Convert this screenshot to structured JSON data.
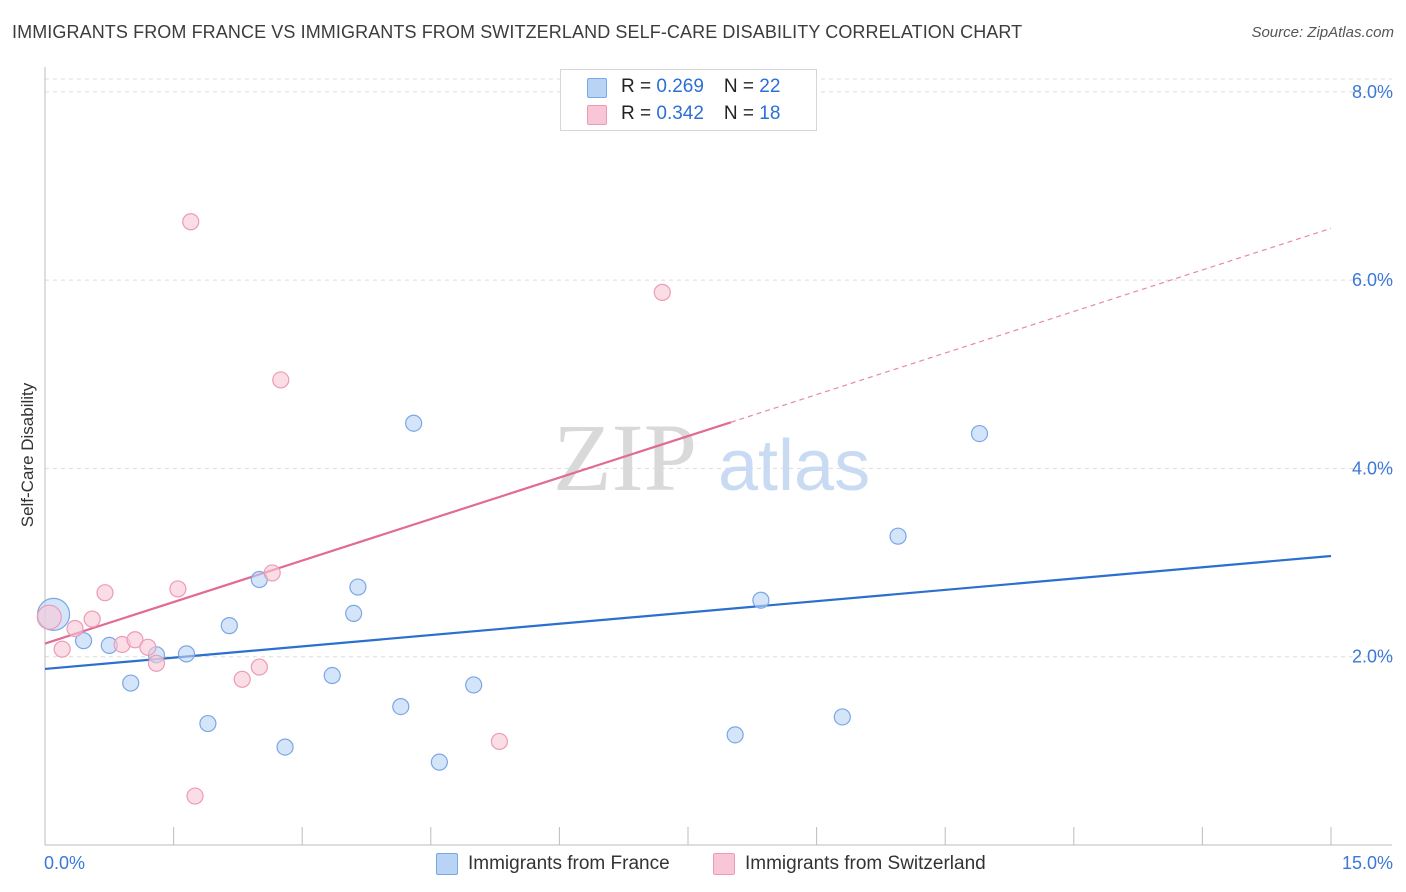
{
  "title": "IMMIGRANTS FROM FRANCE VS IMMIGRANTS FROM SWITZERLAND SELF-CARE DISABILITY CORRELATION CHART",
  "source": "Source: ZipAtlas.com",
  "watermark": {
    "zip": "ZIP",
    "atlas": "atlas"
  },
  "legend": {
    "france": {
      "r_label": "R = ",
      "r_value": "0.269",
      "n_label": "N = ",
      "n_value": "22"
    },
    "switzerland": {
      "r_label": "R = ",
      "r_value": "0.342",
      "n_label": "N = ",
      "n_value": "18"
    }
  },
  "colors": {
    "france_fill": "#b9d3f5",
    "france_stroke": "#7aa7e6",
    "france_line": "#2b6fcf",
    "switzerland_fill": "#f8c6d6",
    "switzerland_stroke": "#ec9bb6",
    "switzerland_line": "#e26b93",
    "grid": "#dcdcdc",
    "axis_text": "#3b78d8"
  },
  "chart_data": {
    "type": "scatter",
    "title": "IMMIGRANTS FROM FRANCE VS IMMIGRANTS FROM SWITZERLAND SELF-CARE DISABILITY CORRELATION CHART",
    "xlabel": "",
    "ylabel": "Self-Care Disability",
    "xlim": [
      0,
      15
    ],
    "ylim": [
      0,
      8.2
    ],
    "x_tick_labels": [
      "0.0%",
      "15.0%"
    ],
    "y_ticks": [
      2,
      4,
      6,
      8
    ],
    "y_tick_labels": [
      "2.0%",
      "4.0%",
      "6.0%",
      "8.0%"
    ],
    "grid": true,
    "legend_position": "top-center",
    "series": [
      {
        "name": "Immigrants from France",
        "points": [
          [
            0.1,
            2.45
          ],
          [
            0.45,
            2.17
          ],
          [
            0.75,
            2.12
          ],
          [
            1.0,
            1.72
          ],
          [
            1.3,
            2.02
          ],
          [
            1.65,
            2.03
          ],
          [
            1.9,
            1.29
          ],
          [
            2.15,
            2.33
          ],
          [
            2.5,
            2.82
          ],
          [
            2.8,
            1.04
          ],
          [
            3.35,
            1.8
          ],
          [
            3.6,
            2.46
          ],
          [
            3.65,
            2.74
          ],
          [
            4.15,
            1.47
          ],
          [
            4.3,
            4.48
          ],
          [
            4.6,
            0.88
          ],
          [
            5.0,
            1.7
          ],
          [
            8.05,
            1.17
          ],
          [
            8.35,
            2.6
          ],
          [
            9.3,
            1.36
          ],
          [
            9.95,
            3.28
          ],
          [
            10.9,
            4.37
          ]
        ],
        "trend": {
          "x": [
            0,
            15
          ],
          "y": [
            1.87,
            3.07
          ]
        }
      },
      {
        "name": "Immigrants from Switzerland",
        "points": [
          [
            0.05,
            2.42
          ],
          [
            0.2,
            2.08
          ],
          [
            0.35,
            2.3
          ],
          [
            0.55,
            2.4
          ],
          [
            0.7,
            2.68
          ],
          [
            0.9,
            2.13
          ],
          [
            1.05,
            2.18
          ],
          [
            1.2,
            2.1
          ],
          [
            1.3,
            1.93
          ],
          [
            1.55,
            2.72
          ],
          [
            1.7,
            6.62
          ],
          [
            1.75,
            0.52
          ],
          [
            2.3,
            1.76
          ],
          [
            2.5,
            1.89
          ],
          [
            2.65,
            2.89
          ],
          [
            2.75,
            4.94
          ],
          [
            5.3,
            1.1
          ],
          [
            7.2,
            5.87
          ]
        ],
        "trend": {
          "x": [
            0,
            8.0
          ],
          "y": [
            2.14,
            4.49
          ]
        },
        "trend_extension": {
          "x": [
            8.0,
            15
          ],
          "y": [
            4.49,
            6.55
          ]
        }
      }
    ]
  },
  "bottom_legend": {
    "france": "Immigrants from France",
    "switzerland": "Immigrants from Switzerland"
  }
}
